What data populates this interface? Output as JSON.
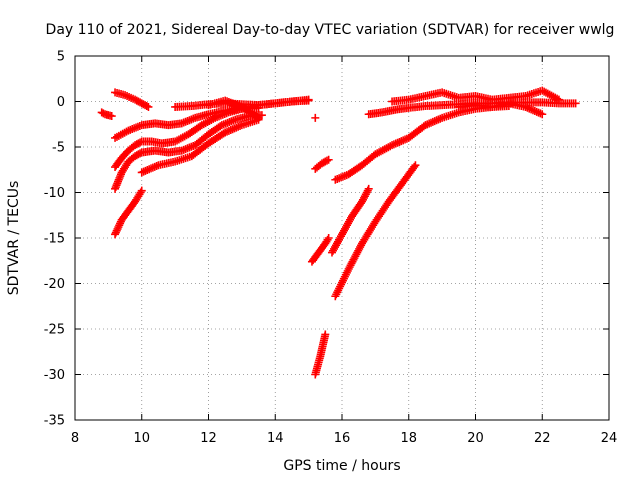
{
  "chart_data": {
    "type": "scatter",
    "title": "Day 110 of 2021, Sidereal Day-to-day VTEC variation (SDTVAR) for receiver wwlg",
    "xlabel": "GPS time / hours",
    "ylabel": "SDTVAR / TECUs",
    "xlim": [
      8,
      24
    ],
    "ylim": [
      -35,
      5
    ],
    "xticks": [
      "8",
      "10",
      "12",
      "14",
      "16",
      "18",
      "20",
      "22",
      "24"
    ],
    "yticks": [
      "5",
      "0",
      "-5",
      "-10",
      "-15",
      "-20",
      "-25",
      "-30",
      "-35"
    ],
    "grid": true,
    "marker": "+",
    "color": "#ff0000",
    "series": [
      {
        "x": [
          8.8,
          8.9,
          9.0,
          9.1
        ],
        "y": [
          -1.2,
          -1.4,
          -1.5,
          -1.6
        ]
      },
      {
        "x": [
          9.2,
          9.5,
          9.8,
          10.0,
          10.2
        ],
        "y": [
          1.0,
          0.7,
          0.2,
          -0.2,
          -0.6
        ]
      },
      {
        "x": [
          9.2,
          9.6,
          10.0,
          10.4,
          10.8,
          11.2,
          11.6,
          12.0,
          12.5,
          13.0,
          13.5
        ],
        "y": [
          -4.0,
          -3.2,
          -2.6,
          -2.4,
          -2.6,
          -2.4,
          -1.8,
          -1.4,
          -1.0,
          -0.8,
          -0.7
        ]
      },
      {
        "x": [
          9.2,
          9.4,
          9.6,
          9.8,
          10.0,
          10.3,
          10.6,
          11.0,
          11.4,
          11.8,
          12.2,
          12.6,
          13.0,
          13.5,
          14.0,
          14.5,
          15.0
        ],
        "y": [
          -7.2,
          -6.2,
          -5.4,
          -4.8,
          -4.4,
          -4.4,
          -4.6,
          -4.4,
          -3.6,
          -2.6,
          -1.8,
          -1.2,
          -0.8,
          -0.4,
          -0.2,
          0.0,
          0.1
        ]
      },
      {
        "x": [
          9.2,
          9.4,
          9.6,
          9.8,
          10.0,
          10.4,
          10.8,
          11.2,
          11.6,
          12.0,
          12.4,
          12.8,
          13.2,
          13.6
        ],
        "y": [
          -9.6,
          -7.8,
          -6.6,
          -6.0,
          -5.6,
          -5.4,
          -5.6,
          -5.4,
          -4.8,
          -3.6,
          -2.6,
          -2.0,
          -1.6,
          -1.5
        ]
      },
      {
        "x": [
          9.2,
          9.4,
          9.6,
          9.8,
          10.0
        ],
        "y": [
          -14.6,
          -13.0,
          -12.0,
          -11.0,
          -9.8
        ]
      },
      {
        "x": [
          10.0,
          10.5,
          11.0,
          11.5,
          12.0,
          12.5,
          13.0,
          13.5
        ],
        "y": [
          -7.8,
          -7.0,
          -6.6,
          -6.0,
          -4.6,
          -3.4,
          -2.6,
          -2.0
        ]
      },
      {
        "x": [
          11.0,
          11.5,
          12.0,
          12.5,
          13.0,
          13.5,
          14.0,
          14.5,
          15.0
        ],
        "y": [
          -0.6,
          -0.5,
          -0.3,
          -0.2,
          -0.3,
          -0.4,
          -0.2,
          0.0,
          0.2
        ]
      },
      {
        "x": [
          12.0,
          12.5,
          13.0,
          13.5
        ],
        "y": [
          -0.4,
          0.1,
          -0.6,
          -1.8
        ]
      },
      {
        "x": [
          15.2
        ],
        "y": [
          -1.8
        ]
      },
      {
        "x": [
          15.2,
          15.4,
          15.6
        ],
        "y": [
          -7.4,
          -6.8,
          -6.4
        ]
      },
      {
        "x": [
          15.1,
          15.3,
          15.5,
          15.6
        ],
        "y": [
          -17.6,
          -16.6,
          -15.6,
          -15.0
        ]
      },
      {
        "x": [
          15.2,
          15.35,
          15.5
        ],
        "y": [
          -30.0,
          -28.0,
          -25.6
        ]
      },
      {
        "x": [
          15.7,
          16.0,
          16.3,
          16.6,
          16.8
        ],
        "y": [
          -16.6,
          -14.6,
          -12.6,
          -11.0,
          -9.6
        ]
      },
      {
        "x": [
          15.8,
          16.2,
          16.6,
          17.0,
          17.4,
          17.8,
          18.2
        ],
        "y": [
          -21.4,
          -18.4,
          -15.6,
          -13.2,
          -11.0,
          -9.0,
          -7.0
        ]
      },
      {
        "x": [
          15.8,
          16.2,
          16.6,
          17.0,
          17.5,
          18.0,
          18.5,
          19.0,
          19.5,
          20.0,
          20.5,
          21.0
        ],
        "y": [
          -8.6,
          -8.0,
          -7.0,
          -5.8,
          -4.8,
          -4.0,
          -2.6,
          -1.8,
          -1.2,
          -0.8,
          -0.6,
          -0.5
        ]
      },
      {
        "x": [
          16.8,
          17.2,
          17.6,
          18.0,
          18.5,
          19.0,
          19.5,
          20.0,
          20.5,
          21.0,
          21.5,
          22.0,
          22.5,
          23.0
        ],
        "y": [
          -1.4,
          -1.2,
          -0.9,
          -0.7,
          -0.5,
          -0.4,
          -0.3,
          -0.2,
          -0.2,
          -0.1,
          -0.1,
          -0.1,
          -0.2,
          -0.2
        ]
      },
      {
        "x": [
          17.5,
          18.0,
          18.5,
          19.0,
          19.5,
          20.0,
          20.5,
          21.0,
          21.5,
          22.0,
          22.5
        ],
        "y": [
          0.0,
          0.2,
          0.6,
          1.0,
          0.4,
          0.6,
          0.2,
          0.4,
          0.6,
          1.2,
          0.2
        ]
      },
      {
        "x": [
          19.5,
          20.0,
          20.5,
          21.0,
          21.5,
          22.0
        ],
        "y": [
          -0.6,
          -0.4,
          -0.6,
          -0.2,
          -0.6,
          -1.4
        ]
      }
    ]
  }
}
